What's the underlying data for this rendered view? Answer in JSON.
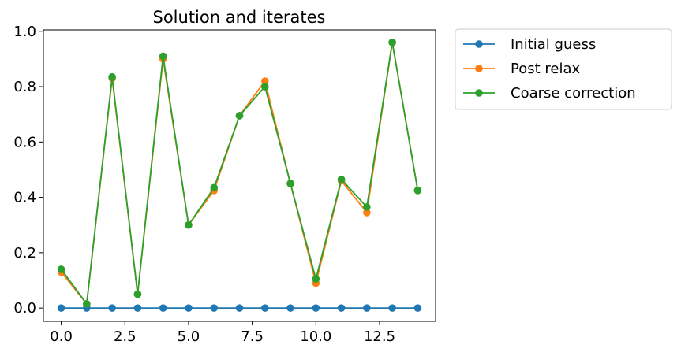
{
  "chart_data": {
    "type": "line",
    "title": "Solution and iterates",
    "xlabel": "",
    "ylabel": "",
    "x": [
      0,
      1,
      2,
      3,
      4,
      5,
      6,
      7,
      8,
      9,
      10,
      11,
      12,
      13,
      14
    ],
    "xlim": [
      -0.7,
      14.7
    ],
    "ylim": [
      -0.048,
      1.005
    ],
    "xticks": [
      0.0,
      2.5,
      5.0,
      7.5,
      10.0,
      12.5
    ],
    "xtick_labels": [
      "0.0",
      "2.5",
      "5.0",
      "7.5",
      "10.0",
      "12.5"
    ],
    "yticks": [
      0.0,
      0.2,
      0.4,
      0.6,
      0.8,
      1.0
    ],
    "ytick_labels": [
      "0.0",
      "0.2",
      "0.4",
      "0.6",
      "0.8",
      "1.0"
    ],
    "grid": false,
    "legend_position": "outside-top-right",
    "series": [
      {
        "name": "Initial guess",
        "color": "#1f77b4",
        "values": [
          0,
          0,
          0,
          0,
          0,
          0,
          0,
          0,
          0,
          0,
          0,
          0,
          0,
          0,
          0
        ]
      },
      {
        "name": "Post relax",
        "color": "#ff7f0e",
        "values": [
          0.13,
          0.015,
          0.83,
          0.05,
          0.9,
          0.3,
          0.425,
          0.695,
          0.82,
          0.45,
          0.09,
          0.46,
          0.345,
          0.96,
          0.425
        ]
      },
      {
        "name": "Coarse correction",
        "color": "#2ca02c",
        "values": [
          0.14,
          0.015,
          0.835,
          0.05,
          0.91,
          0.3,
          0.435,
          0.695,
          0.8,
          0.45,
          0.105,
          0.465,
          0.365,
          0.96,
          0.425
        ]
      }
    ]
  }
}
